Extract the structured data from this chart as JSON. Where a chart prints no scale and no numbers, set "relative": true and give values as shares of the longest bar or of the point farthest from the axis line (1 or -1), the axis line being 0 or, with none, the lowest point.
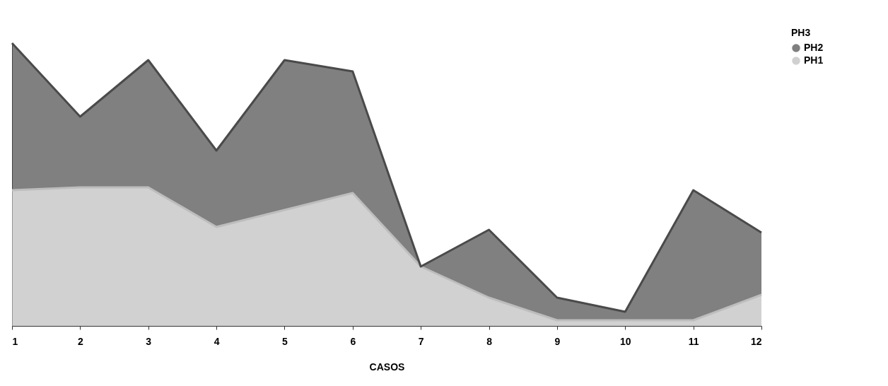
{
  "chart_data": {
    "type": "area",
    "stacked": true,
    "relative": true,
    "xlabel": "CASOS",
    "categories": [
      "1",
      "2",
      "3",
      "4",
      "5",
      "6",
      "7",
      "8",
      "9",
      "10",
      "11",
      "12"
    ],
    "series": [
      {
        "name": "PH1",
        "color": "#bdbdbd",
        "values": [
          0.48,
          0.49,
          0.49,
          0.35,
          0.41,
          0.47,
          0.21,
          0.1,
          0.02,
          0.02,
          0.02,
          0.11
        ]
      },
      {
        "name": "PH2",
        "color": "#4a4a4a",
        "values": [
          0.52,
          0.25,
          0.45,
          0.27,
          0.53,
          0.43,
          0,
          0.24,
          0.08,
          0.03,
          0.46,
          0.22
        ]
      }
    ],
    "legend": "right",
    "annotations": [
      "PH3"
    ]
  }
}
